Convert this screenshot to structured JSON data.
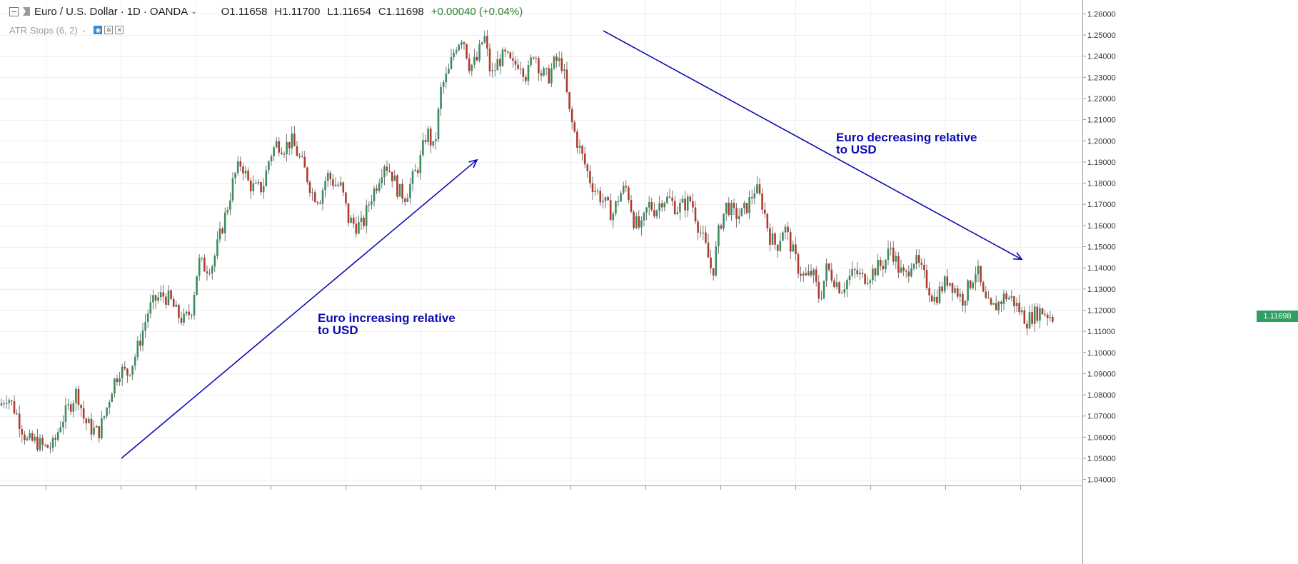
{
  "header": {
    "symbol": "Euro / U.S. Dollar",
    "interval": "1D",
    "source": "OANDA",
    "open": "O1.11658",
    "high": "H1.11700",
    "low": "L1.11654",
    "close": "C1.11698",
    "change": "+0.00040 (+0.04%)"
  },
  "indicator": {
    "label": "ATR Stops (6, 2)"
  },
  "chart_data": {
    "type": "candlestick",
    "symbol": "Euro / U.S. Dollar",
    "ylim": [
      1.04,
      1.26
    ],
    "y_ticks": [
      "1.26000",
      "1.25000",
      "1.24000",
      "1.23000",
      "1.22000",
      "1.21000",
      "1.20000",
      "1.19000",
      "1.18000",
      "1.17000",
      "1.16000",
      "1.15000",
      "1.14000",
      "1.13000",
      "1.12000",
      "1.11000",
      "1.10000",
      "1.09000",
      "1.08000",
      "1.07000",
      "1.06000",
      "1.05000",
      "1.04000"
    ],
    "close_path": [
      [
        0,
        1.075
      ],
      [
        10,
        1.08
      ],
      [
        22,
        1.072
      ],
      [
        38,
        1.058
      ],
      [
        50,
        1.058
      ],
      [
        62,
        1.055
      ],
      [
        75,
        1.056
      ],
      [
        85,
        1.067
      ],
      [
        98,
        1.075
      ],
      [
        108,
        1.082
      ],
      [
        118,
        1.068
      ],
      [
        128,
        1.064
      ],
      [
        138,
        1.062
      ],
      [
        148,
        1.072
      ],
      [
        158,
        1.085
      ],
      [
        168,
        1.092
      ],
      [
        178,
        1.09
      ],
      [
        188,
        1.097
      ],
      [
        198,
        1.108
      ],
      [
        208,
        1.12
      ],
      [
        218,
        1.125
      ],
      [
        228,
        1.127
      ],
      [
        238,
        1.125
      ],
      [
        248,
        1.118
      ],
      [
        258,
        1.115
      ],
      [
        268,
        1.12
      ],
      [
        278,
        1.143
      ],
      [
        288,
        1.14
      ],
      [
        298,
        1.142
      ],
      [
        308,
        1.155
      ],
      [
        318,
        1.168
      ],
      [
        328,
        1.183
      ],
      [
        338,
        1.19
      ],
      [
        348,
        1.18
      ],
      [
        358,
        1.177
      ],
      [
        368,
        1.178
      ],
      [
        378,
        1.193
      ],
      [
        388,
        1.199
      ],
      [
        398,
        1.197
      ],
      [
        408,
        1.2
      ],
      [
        418,
        1.193
      ],
      [
        428,
        1.185
      ],
      [
        438,
        1.175
      ],
      [
        448,
        1.173
      ],
      [
        458,
        1.184
      ],
      [
        468,
        1.18
      ],
      [
        478,
        1.178
      ],
      [
        488,
        1.163
      ],
      [
        498,
        1.16
      ],
      [
        508,
        1.16
      ],
      [
        518,
        1.172
      ],
      [
        528,
        1.18
      ],
      [
        538,
        1.19
      ],
      [
        548,
        1.185
      ],
      [
        558,
        1.176
      ],
      [
        568,
        1.174
      ],
      [
        578,
        1.182
      ],
      [
        588,
        1.19
      ],
      [
        598,
        1.205
      ],
      [
        608,
        1.195
      ],
      [
        618,
        1.225
      ],
      [
        628,
        1.232
      ],
      [
        638,
        1.245
      ],
      [
        648,
        1.25
      ],
      [
        658,
        1.235
      ],
      [
        668,
        1.238
      ],
      [
        678,
        1.25
      ],
      [
        688,
        1.23
      ],
      [
        698,
        1.238
      ],
      [
        708,
        1.24
      ],
      [
        718,
        1.235
      ],
      [
        728,
        1.238
      ],
      [
        738,
        1.23
      ],
      [
        748,
        1.243
      ],
      [
        758,
        1.232
      ],
      [
        768,
        1.23
      ],
      [
        778,
        1.238
      ],
      [
        788,
        1.236
      ],
      [
        798,
        1.212
      ],
      [
        808,
        1.2
      ],
      [
        818,
        1.19
      ],
      [
        828,
        1.18
      ],
      [
        838,
        1.175
      ],
      [
        848,
        1.17
      ],
      [
        858,
        1.165
      ],
      [
        868,
        1.175
      ],
      [
        878,
        1.178
      ],
      [
        888,
        1.162
      ],
      [
        898,
        1.158
      ],
      [
        908,
        1.17
      ],
      [
        918,
        1.167
      ],
      [
        928,
        1.173
      ],
      [
        938,
        1.172
      ],
      [
        948,
        1.168
      ],
      [
        958,
        1.17
      ],
      [
        968,
        1.172
      ],
      [
        978,
        1.16
      ],
      [
        988,
        1.15
      ],
      [
        998,
        1.137
      ],
      [
        1008,
        1.16
      ],
      [
        1018,
        1.17
      ],
      [
        1028,
        1.165
      ],
      [
        1038,
        1.165
      ],
      [
        1048,
        1.17
      ],
      [
        1058,
        1.178
      ],
      [
        1068,
        1.17
      ],
      [
        1078,
        1.155
      ],
      [
        1088,
        1.15
      ],
      [
        1098,
        1.16
      ],
      [
        1108,
        1.15
      ],
      [
        1118,
        1.14
      ],
      [
        1128,
        1.135
      ],
      [
        1138,
        1.138
      ],
      [
        1148,
        1.125
      ],
      [
        1158,
        1.14
      ],
      [
        1168,
        1.135
      ],
      [
        1178,
        1.13
      ],
      [
        1188,
        1.135
      ],
      [
        1198,
        1.138
      ],
      [
        1208,
        1.135
      ],
      [
        1218,
        1.137
      ],
      [
        1228,
        1.14
      ],
      [
        1238,
        1.142
      ],
      [
        1248,
        1.15
      ],
      [
        1258,
        1.14
      ],
      [
        1268,
        1.135
      ],
      [
        1278,
        1.145
      ],
      [
        1288,
        1.14
      ],
      [
        1298,
        1.133
      ],
      [
        1308,
        1.125
      ],
      [
        1318,
        1.13
      ],
      [
        1328,
        1.135
      ],
      [
        1338,
        1.13
      ],
      [
        1348,
        1.125
      ],
      [
        1358,
        1.132
      ],
      [
        1368,
        1.14
      ],
      [
        1378,
        1.125
      ],
      [
        1388,
        1.12
      ],
      [
        1398,
        1.123
      ],
      [
        1408,
        1.127
      ],
      [
        1418,
        1.125
      ],
      [
        1428,
        1.12
      ],
      [
        1438,
        1.115
      ],
      [
        1448,
        1.118
      ],
      [
        1458,
        1.12
      ],
      [
        1468,
        1.118
      ],
      [
        1478,
        1.116
      ]
    ],
    "last_price": "1.11698",
    "annotations": [
      {
        "text_line1": "Euro increasing relative",
        "text_line2": "to USD",
        "arrow_from": [
          170,
          1.05
        ],
        "arrow_to": [
          668,
          1.191
        ]
      },
      {
        "text_line1": "Euro decreasing relative",
        "text_line2": "to USD",
        "arrow_from": [
          845,
          1.252
        ],
        "arrow_to": [
          1431,
          1.144
        ]
      }
    ]
  },
  "colors": {
    "up": "#3d8a5f",
    "down": "#b03a2e",
    "wick": "#555555",
    "arrow": "#0a0ab4",
    "price_tag": "#2e9e62",
    "grid": "#eeeeee"
  }
}
